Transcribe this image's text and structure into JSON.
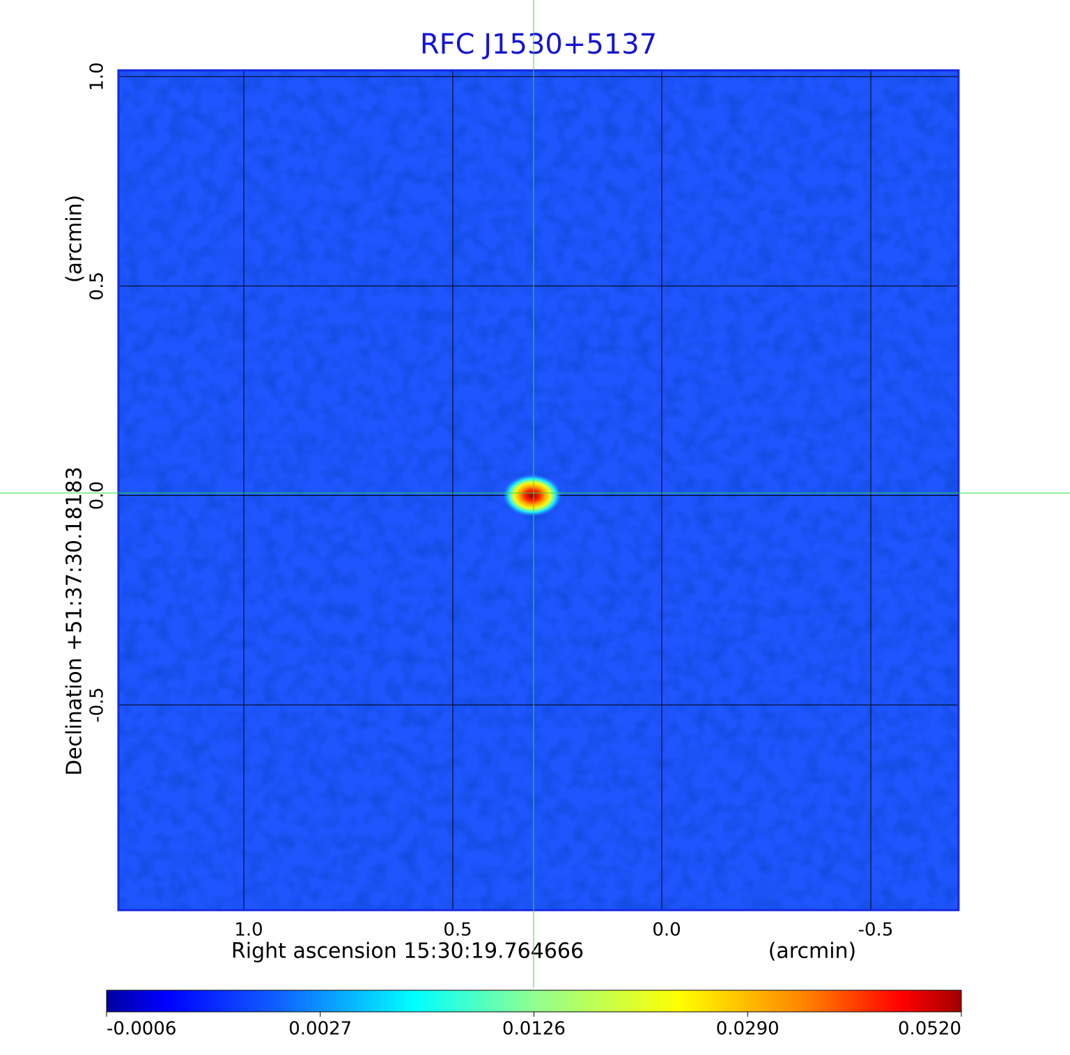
{
  "chart_data": {
    "type": "image",
    "title": "RFC J1530+5137",
    "x_label": "Right ascension  15:30:19.764666",
    "x_unit": "(arcmin)",
    "y_label": "Declination  +51:37:30.18183",
    "y_unit": "(arcmin)",
    "xlim": [
      1.3,
      -0.71
    ],
    "ylim": [
      -0.99,
      1.015
    ],
    "xticks": [
      {
        "value": 1,
        "label": "1.0"
      },
      0.5,
      {
        "value": 0,
        "label": "0.0"
      },
      -0.5
    ],
    "yticks": [
      {
        "value": 1,
        "label": "1.0"
      },
      0.5,
      {
        "value": 0,
        "label": "0.0"
      },
      -0.5
    ],
    "grid": true,
    "source_position": {
      "x": 0.31,
      "y": 0
    },
    "colorbar_ticks": [
      -0.0006,
      0.0027,
      0.0126,
      {
        "value": 0.029,
        "label": "0.0290"
      },
      {
        "value": 0.052,
        "label": "0.0520"
      }
    ]
  }
}
